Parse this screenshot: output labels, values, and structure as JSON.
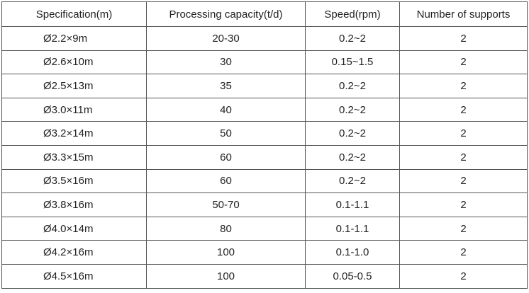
{
  "table": {
    "headers": [
      "Specification(m)",
      "Processing capacity(t/d)",
      "Speed(rpm)",
      "Number of supports"
    ],
    "rows": [
      [
        "Ø2.2×9m",
        "20-30",
        "0.2~2",
        "2"
      ],
      [
        "Ø2.6×10m",
        "30",
        "0.15~1.5",
        "2"
      ],
      [
        "Ø2.5×13m",
        "35",
        "0.2~2",
        "2"
      ],
      [
        "Ø3.0×11m",
        "40",
        "0.2~2",
        "2"
      ],
      [
        "Ø3.2×14m",
        "50",
        "0.2~2",
        "2"
      ],
      [
        "Ø3.3×15m",
        "60",
        "0.2~2",
        "2"
      ],
      [
        "Ø3.5×16m",
        "60",
        "0.2~2",
        "2"
      ],
      [
        "Ø3.8×16m",
        "50-70",
        "0.1-1.1",
        "2"
      ],
      [
        "Ø4.0×14m",
        "80",
        "0.1-1.1",
        "2"
      ],
      [
        "Ø4.2×16m",
        "100",
        "0.1-1.0",
        "2"
      ],
      [
        "Ø4.5×16m",
        "100",
        "0.05-0.5",
        "2"
      ]
    ]
  }
}
